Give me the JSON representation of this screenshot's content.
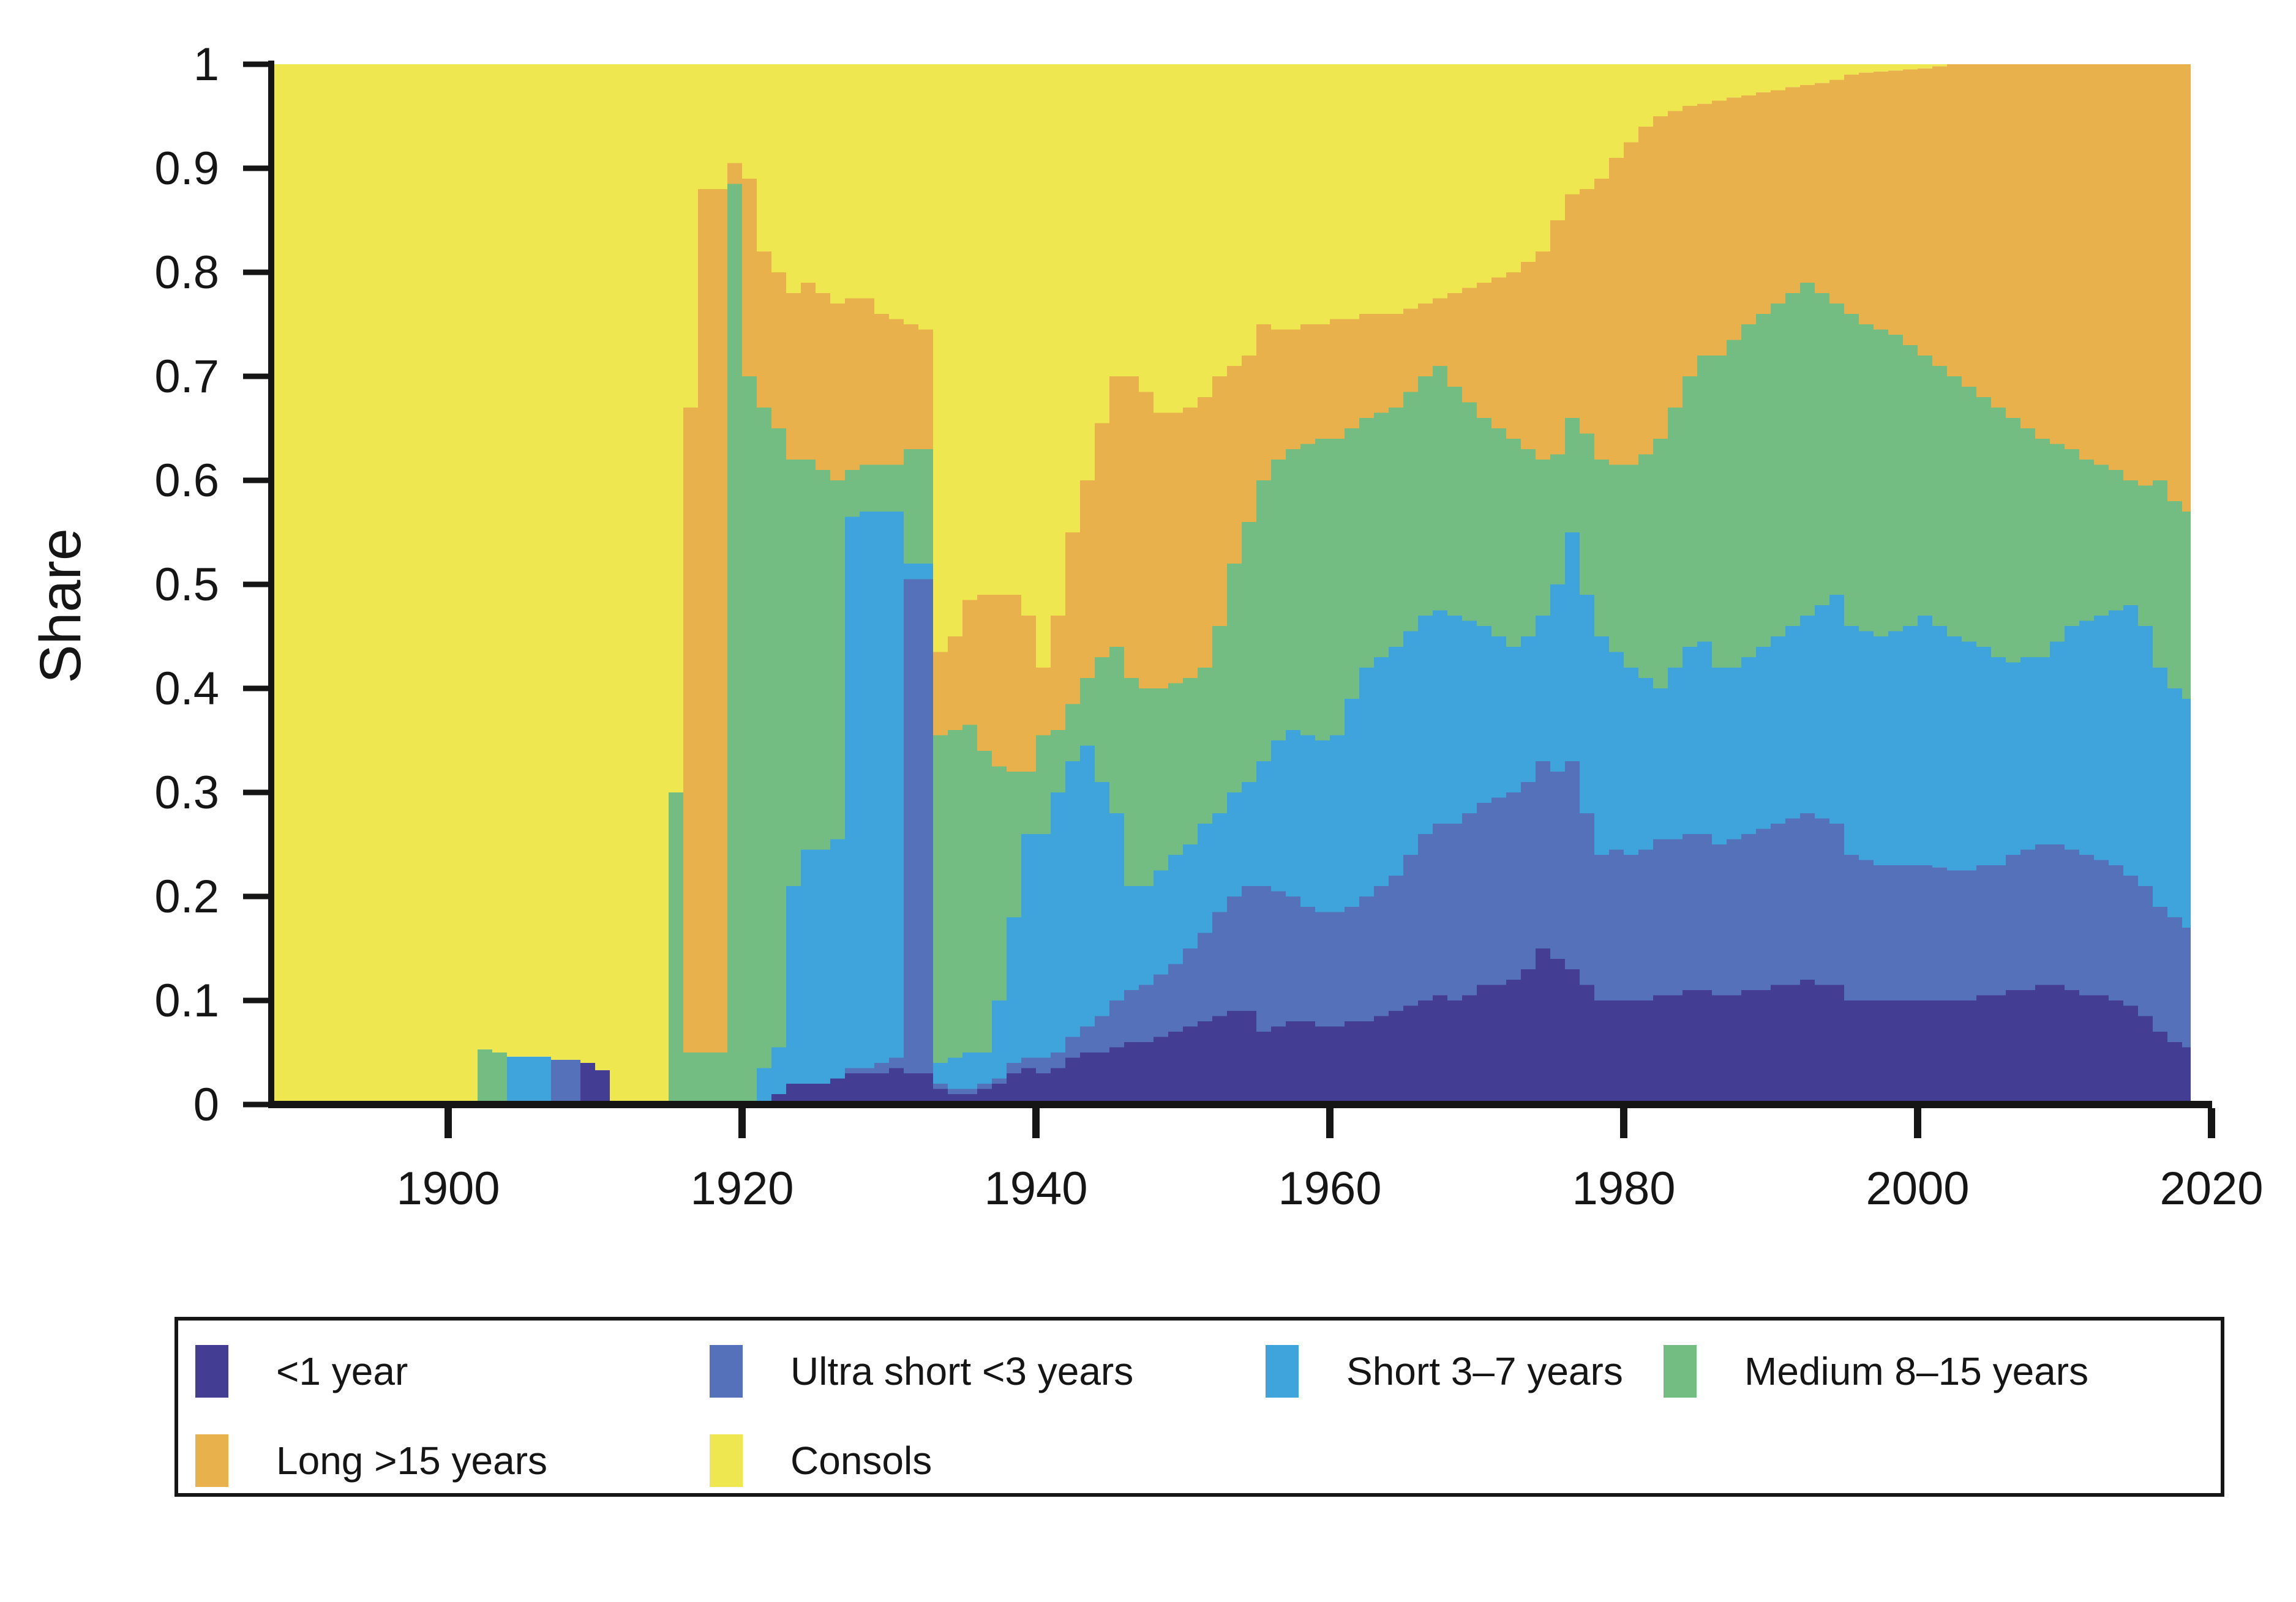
{
  "figure": {
    "kind": "stacked-area-chart",
    "background": "#ffffff",
    "axis_color": "#151515"
  },
  "chart_data": {
    "type": "area",
    "stacked": true,
    "title": "",
    "xlabel": "",
    "ylabel": "Share",
    "grid": false,
    "legend_position": "bottom",
    "xlim": [
      1888,
      2018.6
    ],
    "ylim": [
      0,
      1
    ],
    "x_ticks": [
      1900,
      1920,
      1940,
      1960,
      1980,
      2000,
      2020
    ],
    "x_tick_labels": [
      "1900",
      "1920",
      "1940",
      "1960",
      "1980",
      "2000",
      "2020"
    ],
    "y_ticks": [
      0,
      0.1,
      0.2,
      0.3,
      0.4,
      0.5,
      0.6,
      0.7,
      0.8,
      0.9,
      1
    ],
    "y_tick_labels": [
      "0",
      "0.1",
      "0.2",
      "0.3",
      "0.4",
      "0.5",
      "0.6",
      "0.7",
      "0.8",
      "0.9",
      "1"
    ],
    "x": [
      1888,
      1889,
      1890,
      1891,
      1892,
      1893,
      1894,
      1895,
      1896,
      1897,
      1898,
      1899,
      1900,
      1901,
      1902,
      1903,
      1904,
      1905,
      1906,
      1907,
      1908,
      1909,
      1910,
      1911,
      1912,
      1913,
      1914,
      1915,
      1916,
      1917,
      1918,
      1919,
      1920,
      1921,
      1922,
      1923,
      1924,
      1925,
      1926,
      1927,
      1928,
      1929,
      1930,
      1931,
      1932,
      1933,
      1934,
      1935,
      1936,
      1937,
      1938,
      1939,
      1940,
      1941,
      1942,
      1943,
      1944,
      1945,
      1946,
      1947,
      1948,
      1949,
      1950,
      1951,
      1952,
      1953,
      1954,
      1955,
      1956,
      1957,
      1958,
      1959,
      1960,
      1961,
      1962,
      1963,
      1964,
      1965,
      1966,
      1967,
      1968,
      1969,
      1970,
      1971,
      1972,
      1973,
      1974,
      1975,
      1976,
      1977,
      1978,
      1979,
      1980,
      1981,
      1982,
      1983,
      1984,
      1985,
      1986,
      1987,
      1988,
      1989,
      1990,
      1991,
      1992,
      1993,
      1994,
      1995,
      1996,
      1997,
      1998,
      1999,
      2000,
      2001,
      2002,
      2003,
      2004,
      2005,
      2006,
      2007,
      2008,
      2009,
      2010,
      2011,
      2012,
      2013,
      2014,
      2015,
      2016,
      2017,
      2018
    ],
    "series": [
      {
        "name": "<1 year",
        "color": "#433e93",
        "values": [
          0,
          0,
          0,
          0,
          0,
          0,
          0,
          0,
          0,
          0,
          0,
          0,
          0,
          0,
          0,
          0,
          0,
          0,
          0,
          0,
          0,
          0.04,
          0.033,
          0,
          0,
          0,
          0,
          0,
          0,
          0,
          0,
          0,
          0,
          0,
          0.01,
          0.02,
          0.02,
          0.02,
          0.025,
          0.03,
          0.03,
          0.03,
          0.035,
          0.03,
          0.03,
          0.015,
          0.01,
          0.01,
          0.015,
          0.02,
          0.03,
          0.035,
          0.03,
          0.035,
          0.045,
          0.05,
          0.05,
          0.055,
          0.06,
          0.06,
          0.065,
          0.07,
          0.075,
          0.08,
          0.085,
          0.09,
          0.09,
          0.07,
          0.075,
          0.08,
          0.08,
          0.075,
          0.075,
          0.08,
          0.08,
          0.085,
          0.09,
          0.095,
          0.1,
          0.105,
          0.1,
          0.105,
          0.115,
          0.115,
          0.12,
          0.13,
          0.15,
          0.14,
          0.13,
          0.115,
          0.1,
          0.1,
          0.1,
          0.1,
          0.105,
          0.105,
          0.11,
          0.11,
          0.105,
          0.105,
          0.11,
          0.11,
          0.115,
          0.115,
          0.12,
          0.115,
          0.115,
          0.1,
          0.1,
          0.1,
          0.1,
          0.1,
          0.1,
          0.1,
          0.1,
          0.1,
          0.105,
          0.105,
          0.11,
          0.11,
          0.115,
          0.115,
          0.11,
          0.105,
          0.105,
          0.1,
          0.095,
          0.085,
          0.07,
          0.06,
          0.055
        ]
      },
      {
        "name": "Ultra short <3 years",
        "color": "#5471b9",
        "values": [
          0,
          0,
          0,
          0,
          0,
          0,
          0,
          0,
          0,
          0,
          0,
          0,
          0,
          0,
          0,
          0,
          0,
          0,
          0,
          0.043,
          0.043,
          0,
          0,
          0,
          0,
          0,
          0,
          0,
          0,
          0,
          0,
          0,
          0,
          0,
          0,
          0,
          0,
          0,
          0,
          0.005,
          0.005,
          0.01,
          0.01,
          0.475,
          0.475,
          0.005,
          0.005,
          0.005,
          0.005,
          0.005,
          0.01,
          0.01,
          0.015,
          0.015,
          0.02,
          0.025,
          0.035,
          0.045,
          0.05,
          0.055,
          0.06,
          0.065,
          0.075,
          0.085,
          0.1,
          0.11,
          0.12,
          0.14,
          0.13,
          0.12,
          0.11,
          0.11,
          0.11,
          0.11,
          0.12,
          0.125,
          0.13,
          0.145,
          0.16,
          0.165,
          0.17,
          0.175,
          0.175,
          0.18,
          0.18,
          0.18,
          0.18,
          0.18,
          0.2,
          0.165,
          0.14,
          0.145,
          0.14,
          0.145,
          0.15,
          0.15,
          0.15,
          0.15,
          0.145,
          0.15,
          0.15,
          0.155,
          0.155,
          0.16,
          0.16,
          0.16,
          0.155,
          0.14,
          0.135,
          0.13,
          0.13,
          0.13,
          0.13,
          0.128,
          0.125,
          0.125,
          0.125,
          0.125,
          0.13,
          0.135,
          0.135,
          0.135,
          0.135,
          0.135,
          0.13,
          0.13,
          0.125,
          0.125,
          0.12,
          0.12,
          0.115
        ]
      },
      {
        "name": "Short 3–7 years",
        "color": "#3fa3dc",
        "values": [
          0,
          0,
          0,
          0,
          0,
          0,
          0,
          0,
          0,
          0,
          0,
          0,
          0,
          0,
          0,
          0,
          0.046,
          0.046,
          0.046,
          0,
          0,
          0,
          0,
          0,
          0,
          0,
          0,
          0,
          0,
          0,
          0,
          0,
          0,
          0.035,
          0.045,
          0.19,
          0.225,
          0.225,
          0.23,
          0.53,
          0.535,
          0.53,
          0.525,
          0.015,
          0.015,
          0.02,
          0.03,
          0.035,
          0.03,
          0.075,
          0.14,
          0.215,
          0.215,
          0.25,
          0.265,
          0.27,
          0.225,
          0.18,
          0.1,
          0.095,
          0.1,
          0.105,
          0.1,
          0.105,
          0.095,
          0.1,
          0.1,
          0.12,
          0.145,
          0.16,
          0.165,
          0.165,
          0.17,
          0.2,
          0.22,
          0.22,
          0.22,
          0.215,
          0.21,
          0.205,
          0.2,
          0.185,
          0.17,
          0.155,
          0.14,
          0.14,
          0.14,
          0.18,
          0.22,
          0.21,
          0.21,
          0.19,
          0.18,
          0.165,
          0.145,
          0.165,
          0.18,
          0.185,
          0.17,
          0.165,
          0.17,
          0.175,
          0.18,
          0.185,
          0.19,
          0.205,
          0.22,
          0.22,
          0.22,
          0.22,
          0.225,
          0.23,
          0.24,
          0.232,
          0.225,
          0.22,
          0.21,
          0.2,
          0.185,
          0.185,
          0.18,
          0.195,
          0.215,
          0.225,
          0.235,
          0.245,
          0.26,
          0.25,
          0.23,
          0.22,
          0.22
        ]
      },
      {
        "name": "Medium 8–15 years",
        "color": "#74bd82",
        "values": [
          0,
          0,
          0,
          0,
          0,
          0,
          0,
          0,
          0,
          0,
          0,
          0,
          0,
          0,
          0.053,
          0.05,
          0,
          0,
          0,
          0,
          0,
          0,
          0,
          0,
          0,
          0,
          0,
          0.3,
          0.05,
          0.05,
          0.05,
          0.885,
          0.7,
          0.635,
          0.595,
          0.41,
          0.375,
          0.365,
          0.345,
          0.045,
          0.045,
          0.045,
          0.045,
          0.11,
          0.11,
          0.315,
          0.315,
          0.315,
          0.29,
          0.225,
          0.14,
          0.06,
          0.095,
          0.06,
          0.055,
          0.065,
          0.12,
          0.16,
          0.2,
          0.19,
          0.175,
          0.165,
          0.16,
          0.15,
          0.18,
          0.22,
          0.25,
          0.27,
          0.27,
          0.27,
          0.28,
          0.29,
          0.285,
          0.26,
          0.24,
          0.235,
          0.23,
          0.23,
          0.23,
          0.235,
          0.22,
          0.21,
          0.2,
          0.2,
          0.2,
          0.18,
          0.15,
          0.125,
          0.11,
          0.155,
          0.17,
          0.18,
          0.195,
          0.215,
          0.24,
          0.25,
          0.26,
          0.275,
          0.3,
          0.315,
          0.32,
          0.32,
          0.32,
          0.32,
          0.32,
          0.3,
          0.28,
          0.3,
          0.295,
          0.295,
          0.285,
          0.27,
          0.25,
          0.25,
          0.25,
          0.245,
          0.24,
          0.24,
          0.235,
          0.22,
          0.21,
          0.19,
          0.17,
          0.155,
          0.145,
          0.135,
          0.12,
          0.135,
          0.18,
          0.18,
          0.18
        ]
      },
      {
        "name": "Long >15 years",
        "color": "#e8b14c",
        "values": [
          0,
          0,
          0,
          0,
          0,
          0,
          0,
          0,
          0,
          0,
          0,
          0,
          0,
          0,
          0,
          0,
          0,
          0,
          0,
          0,
          0,
          0,
          0,
          0,
          0,
          0,
          0,
          0,
          0.62,
          0.83,
          0.83,
          0.02,
          0.19,
          0.15,
          0.15,
          0.16,
          0.17,
          0.17,
          0.17,
          0.165,
          0.16,
          0.145,
          0.14,
          0.12,
          0.115,
          0.08,
          0.09,
          0.12,
          0.15,
          0.165,
          0.17,
          0.15,
          0.065,
          0.11,
          0.165,
          0.19,
          0.225,
          0.26,
          0.29,
          0.285,
          0.265,
          0.26,
          0.26,
          0.26,
          0.24,
          0.19,
          0.16,
          0.15,
          0.125,
          0.115,
          0.115,
          0.11,
          0.115,
          0.105,
          0.1,
          0.095,
          0.09,
          0.08,
          0.07,
          0.065,
          0.09,
          0.11,
          0.13,
          0.145,
          0.16,
          0.18,
          0.2,
          0.225,
          0.215,
          0.235,
          0.27,
          0.295,
          0.31,
          0.315,
          0.31,
          0.285,
          0.26,
          0.242,
          0.245,
          0.233,
          0.22,
          0.213,
          0.205,
          0.198,
          0.19,
          0.202,
          0.215,
          0.23,
          0.242,
          0.248,
          0.254,
          0.265,
          0.276,
          0.288,
          0.3,
          0.31,
          0.32,
          0.33,
          0.34,
          0.35,
          0.36,
          0.365,
          0.37,
          0.38,
          0.385,
          0.39,
          0.4,
          0.405,
          0.4,
          0.42,
          0.43
        ]
      },
      {
        "name": "Consols",
        "color": "#eee74f",
        "values": [
          1,
          1,
          1,
          1,
          1,
          1,
          1,
          1,
          1,
          1,
          1,
          1,
          1,
          1,
          0.947,
          0.95,
          0.954,
          0.954,
          0.954,
          0.957,
          0.957,
          0.96,
          0.967,
          1,
          1,
          1,
          1,
          0.7,
          0.33,
          0.12,
          0.12,
          0.095,
          0.11,
          0.18,
          0.2,
          0.22,
          0.21,
          0.22,
          0.23,
          0.225,
          0.225,
          0.24,
          0.245,
          0.25,
          0.255,
          0.565,
          0.55,
          0.515,
          0.51,
          0.51,
          0.51,
          0.53,
          0.58,
          0.53,
          0.45,
          0.4,
          0.345,
          0.3,
          0.3,
          0.315,
          0.335,
          0.335,
          0.33,
          0.32,
          0.3,
          0.29,
          0.28,
          0.25,
          0.255,
          0.255,
          0.25,
          0.25,
          0.245,
          0.245,
          0.24,
          0.24,
          0.24,
          0.235,
          0.23,
          0.225,
          0.22,
          0.215,
          0.21,
          0.205,
          0.2,
          0.19,
          0.18,
          0.15,
          0.125,
          0.12,
          0.11,
          0.09,
          0.075,
          0.06,
          0.05,
          0.045,
          0.04,
          0.038,
          0.035,
          0.032,
          0.03,
          0.027,
          0.025,
          0.022,
          0.02,
          0.018,
          0.015,
          0.01,
          0.008,
          0.007,
          0.006,
          0.005,
          0.004,
          0.002,
          0,
          0,
          0,
          0,
          0,
          0,
          0,
          0,
          0,
          0,
          0,
          0,
          0,
          0,
          0,
          0,
          0
        ]
      }
    ]
  }
}
